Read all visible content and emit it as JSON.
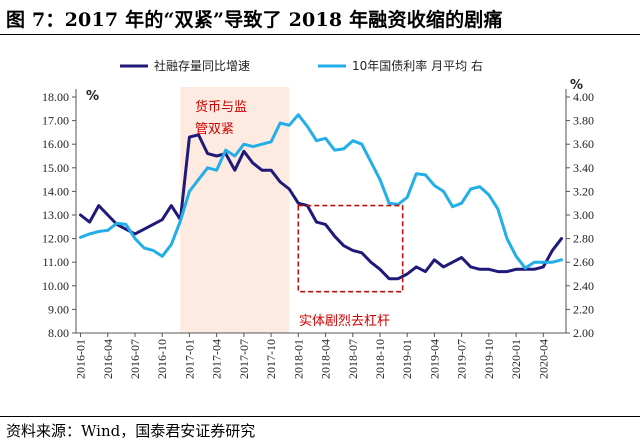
{
  "header": {
    "title": "图 7：2017 年的“双紧”导致了 2018 年融资收缩的剧痛"
  },
  "footer": {
    "source": "资料来源：Wind，国泰君安证券研究"
  },
  "chart_data": {
    "type": "line",
    "title": "图 7：2017 年的“双紧”导致了 2018 年融资收缩的剧痛",
    "x_tick_labels": [
      "2016-01",
      "2016-04",
      "2016-07",
      "2016-10",
      "2017-01",
      "2017-04",
      "2017-07",
      "2017-10",
      "2018-01",
      "2018-04",
      "2018-07",
      "2018-10",
      "2019-01",
      "2019-04",
      "2019-07",
      "2019-10",
      "2020-01",
      "2020-04"
    ],
    "y_left": {
      "unit": "%",
      "ylim": [
        8,
        18
      ],
      "ticks": [
        "8.00",
        "9.00",
        "10.00",
        "11.00",
        "12.00",
        "13.00",
        "14.00",
        "15.00",
        "16.00",
        "17.00",
        "18.00"
      ]
    },
    "y_right": {
      "unit": "%",
      "ylim": [
        2.0,
        4.0
      ],
      "ticks": [
        "2.00",
        "2.20",
        "2.40",
        "2.60",
        "2.80",
        "3.00",
        "3.20",
        "3.40",
        "3.60",
        "3.80",
        "4.00"
      ]
    },
    "grid": false,
    "legend_position": "top",
    "series": [
      {
        "name": "社融存量同比增速",
        "axis": "left",
        "color": "#1f1a7a",
        "points": [
          [
            0,
            13.0
          ],
          [
            1,
            12.7
          ],
          [
            2,
            13.4
          ],
          [
            3,
            13.0
          ],
          [
            4,
            12.6
          ],
          [
            5,
            12.4
          ],
          [
            6,
            12.2
          ],
          [
            7,
            12.4
          ],
          [
            8,
            12.6
          ],
          [
            9,
            12.8
          ],
          [
            10,
            13.4
          ],
          [
            11,
            12.8
          ],
          [
            12,
            16.3
          ],
          [
            13,
            16.4
          ],
          [
            14,
            15.6
          ],
          [
            15,
            15.5
          ],
          [
            16,
            15.6
          ],
          [
            17,
            14.9
          ],
          [
            18,
            15.7
          ],
          [
            19,
            15.2
          ],
          [
            20,
            14.9
          ],
          [
            21,
            14.9
          ],
          [
            22,
            14.4
          ],
          [
            23,
            14.1
          ],
          [
            24,
            13.5
          ],
          [
            25,
            13.4
          ],
          [
            26,
            12.7
          ],
          [
            27,
            12.6
          ],
          [
            28,
            12.1
          ],
          [
            29,
            11.7
          ],
          [
            30,
            11.5
          ],
          [
            31,
            11.4
          ],
          [
            32,
            11.0
          ],
          [
            33,
            10.7
          ],
          [
            34,
            10.3
          ],
          [
            35,
            10.3
          ],
          [
            36,
            10.5
          ],
          [
            37,
            10.8
          ],
          [
            38,
            10.6
          ],
          [
            39,
            11.1
          ],
          [
            40,
            10.8
          ],
          [
            41,
            11.0
          ],
          [
            42,
            11.2
          ],
          [
            43,
            10.8
          ],
          [
            44,
            10.7
          ],
          [
            45,
            10.7
          ],
          [
            46,
            10.6
          ],
          [
            47,
            10.6
          ],
          [
            48,
            10.7
          ],
          [
            49,
            10.7
          ],
          [
            50,
            10.7
          ],
          [
            51,
            10.8
          ],
          [
            52,
            11.5
          ],
          [
            53,
            12.0
          ]
        ]
      },
      {
        "name": "10年国债利率 月平均 右",
        "axis": "right",
        "color": "#22aee8",
        "points": [
          [
            0,
            2.81
          ],
          [
            1,
            2.84
          ],
          [
            2,
            2.86
          ],
          [
            3,
            2.87
          ],
          [
            4,
            2.93
          ],
          [
            5,
            2.92
          ],
          [
            6,
            2.8
          ],
          [
            7,
            2.72
          ],
          [
            8,
            2.7
          ],
          [
            9,
            2.65
          ],
          [
            10,
            2.75
          ],
          [
            11,
            2.95
          ],
          [
            12,
            3.2
          ],
          [
            13,
            3.3
          ],
          [
            14,
            3.4
          ],
          [
            15,
            3.38
          ],
          [
            16,
            3.55
          ],
          [
            17,
            3.5
          ],
          [
            18,
            3.6
          ],
          [
            19,
            3.58
          ],
          [
            20,
            3.6
          ],
          [
            21,
            3.62
          ],
          [
            22,
            3.78
          ],
          [
            23,
            3.76
          ],
          [
            24,
            3.85
          ],
          [
            25,
            3.75
          ],
          [
            26,
            3.63
          ],
          [
            27,
            3.65
          ],
          [
            28,
            3.55
          ],
          [
            29,
            3.56
          ],
          [
            30,
            3.63
          ],
          [
            31,
            3.6
          ],
          [
            32,
            3.45
          ],
          [
            33,
            3.3
          ],
          [
            34,
            3.1
          ],
          [
            35,
            3.09
          ],
          [
            36,
            3.15
          ],
          [
            37,
            3.35
          ],
          [
            38,
            3.34
          ],
          [
            39,
            3.25
          ],
          [
            40,
            3.2
          ],
          [
            41,
            3.07
          ],
          [
            42,
            3.1
          ],
          [
            43,
            3.22
          ],
          [
            44,
            3.24
          ],
          [
            45,
            3.17
          ],
          [
            46,
            3.05
          ],
          [
            47,
            2.8
          ],
          [
            48,
            2.65
          ],
          [
            49,
            2.55
          ],
          [
            50,
            2.6
          ],
          [
            51,
            2.6
          ],
          [
            52,
            2.6
          ],
          [
            53,
            2.62
          ]
        ]
      }
    ],
    "annotations": [
      {
        "text": "货币与监管双紧",
        "lines": [
          "货币与监",
          "管双紧"
        ],
        "shaded_from": 11.0,
        "shaded_to": 23.0
      },
      {
        "text": "实体剧烈去杠杆",
        "box_x": [
          24.0,
          35.5
        ],
        "box_y_left": [
          9.75,
          13.4
        ]
      }
    ]
  }
}
